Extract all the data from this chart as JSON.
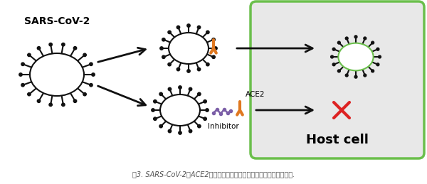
{
  "bg_color": "#ffffff",
  "panel_bg": "#e8e8e8",
  "panel_border": "#6abf4b",
  "title_text": "图3. SARS-CoV-2棘ACE2受体结合与抑制的关系及其对细胞进入的影响.",
  "sars_label": "SARS-CoV-2",
  "inhibitor_label": "Inhibitor",
  "ace2_label": "ACE2",
  "host_label": "Host cell",
  "virus_color": "#ffffff",
  "virus_border": "#111111",
  "spike_color": "#111111",
  "receptor_color": "#e07820",
  "inhibitor_color": "#7b5ea7",
  "arrow_color": "#111111",
  "cross_color": "#dd2222",
  "green_border": "#6abf4b",
  "host_cell_label_size": 13,
  "caption_size": 7
}
